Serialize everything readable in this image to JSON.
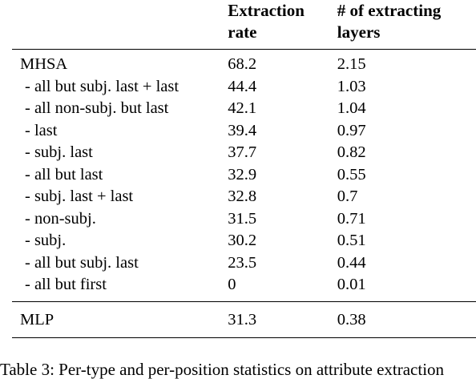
{
  "table": {
    "headers": [
      "",
      "Extraction rate",
      "# of extracting layers"
    ],
    "header_lines": {
      "col2": [
        "Extraction",
        "rate"
      ],
      "col3": [
        "# of extracting",
        "layers"
      ]
    },
    "mhsa_rows": [
      {
        "label": "MHSA",
        "rate": "68.2",
        "layers": "2.15"
      },
      {
        "label": "- all but subj. last + last",
        "rate": "44.4",
        "layers": "1.03"
      },
      {
        "label": "- all non-subj. but last",
        "rate": "42.1",
        "layers": "1.04"
      },
      {
        "label": "- last",
        "rate": "39.4",
        "layers": "0.97"
      },
      {
        "label": "- subj. last",
        "rate": "37.7",
        "layers": "0.82"
      },
      {
        "label": "- all but last",
        "rate": "32.9",
        "layers": "0.55"
      },
      {
        "label": "- subj. last + last",
        "rate": "32.8",
        "layers": "0.7"
      },
      {
        "label": "- non-subj.",
        "rate": "31.5",
        "layers": "0.71"
      },
      {
        "label": "- subj.",
        "rate": "30.2",
        "layers": "0.51"
      },
      {
        "label": "- all but subj. last",
        "rate": "23.5",
        "layers": "0.44"
      },
      {
        "label": "- all but first",
        "rate": "0",
        "layers": "0.01"
      }
    ],
    "mlp_row": {
      "label": "MLP",
      "rate": "31.3",
      "layers": "0.38"
    }
  },
  "caption": "Table 3: Per-type and per-position statistics on attribute extraction"
}
